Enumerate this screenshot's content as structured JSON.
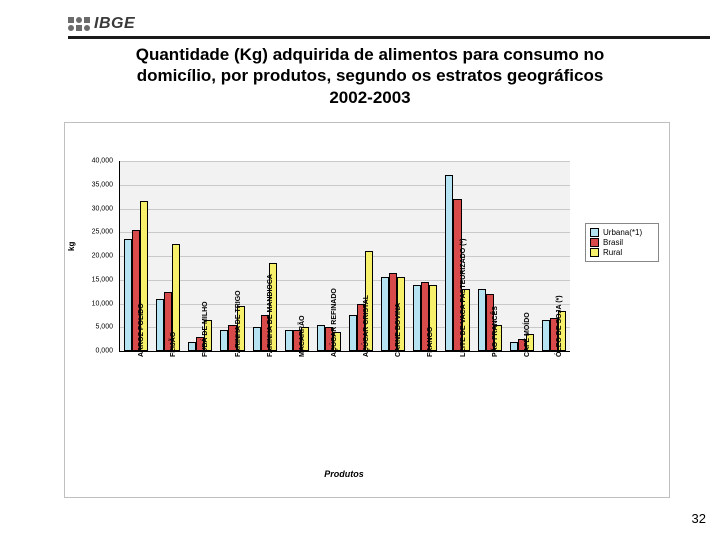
{
  "brand": {
    "text": "IBGE"
  },
  "title": {
    "line1": "Quantidade (Kg) adquirida de alimentos para consumo no",
    "line2": "domicílio, por produtos, segundo os estratos geográficos",
    "line3": "2002-2003"
  },
  "page_number": "32",
  "chart": {
    "type": "bar",
    "background_color": "#f2f2f2",
    "grid_color": "#c9c9c9",
    "border_color": "#bfbfbf",
    "xlabel": "Produtos",
    "ylabel": "kg",
    "ylim": [
      0,
      40
    ],
    "ytick_step": 5,
    "yticks": [
      "0,000",
      "5,000",
      "10,000",
      "15,000",
      "20,000",
      "25,000",
      "30,000",
      "35,000",
      "40,000"
    ],
    "series": [
      {
        "key": "urbana",
        "label": "Urbana(*1)",
        "color": "#b6e3f2"
      },
      {
        "key": "brasil",
        "label": "Brasil",
        "color": "#d94a4a"
      },
      {
        "key": "rural",
        "label": "Rural",
        "color": "#f7f06b"
      }
    ],
    "categories": [
      "ARROZ POLIDO",
      "FEIJÃO",
      "FUBÁ DE MILHO",
      "FARINHA DE TRIGO",
      "FARINHA DE MANDIOCA",
      "MACARRÃO",
      "AÇÚCAR REFINADO",
      "AÇÚCAR CRISTAL",
      "CARNE BOVINA",
      "FRANGO",
      "LEITE DE VACA PASTEURIZADO (*)",
      "PÃO FRANCÊS",
      "CAFÉ MOÍDO",
      "ÓLEO DE SOJA (*)"
    ],
    "values": {
      "urbana": [
        23.5,
        11.0,
        2.0,
        4.5,
        5.0,
        4.5,
        5.5,
        7.5,
        15.5,
        14.0,
        37.0,
        13.0,
        2.0,
        6.5
      ],
      "brasil": [
        25.5,
        12.5,
        3.0,
        5.5,
        7.5,
        4.5,
        5.0,
        10.0,
        16.5,
        14.5,
        32.0,
        12.0,
        2.5,
        7.0
      ],
      "rural": [
        31.5,
        22.5,
        6.5,
        9.5,
        18.5,
        5.0,
        4.0,
        21.0,
        15.5,
        14.0,
        13.0,
        5.5,
        3.5,
        8.5
      ]
    },
    "bar_group_width": 0.75,
    "title_fontsize": 17,
    "label_fontsize": 9,
    "tick_fontsize": 7
  }
}
